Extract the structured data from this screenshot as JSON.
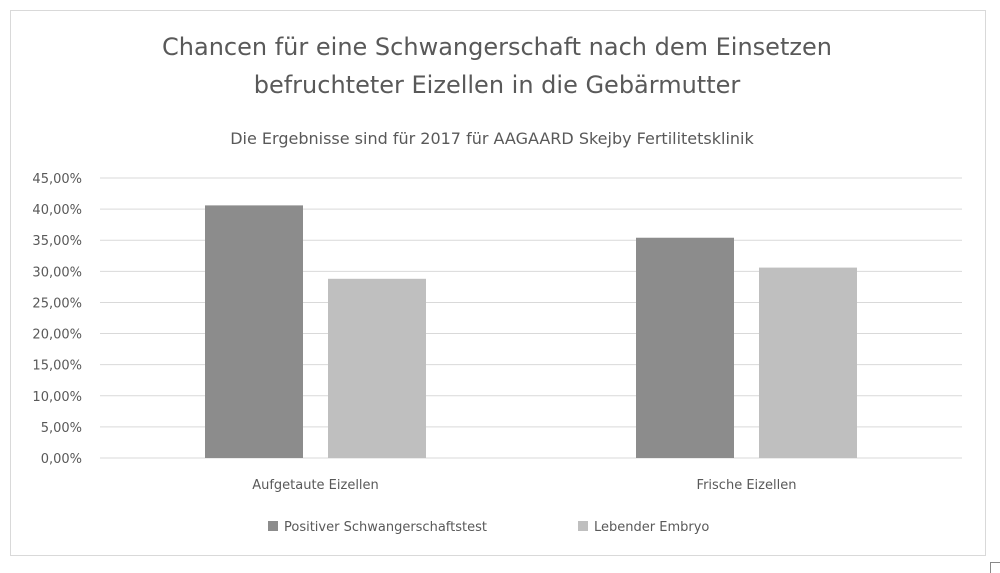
{
  "chart_data": {
    "type": "bar",
    "title_line1": "Chancen für eine Schwangerschaft nach dem Einsetzen",
    "title_line2": "befruchteter Eizellen in die Gebärmutter",
    "subtitle": "Die Ergebnisse sind für 2017 für AAGAARD Skejby Fertilitetsklinik",
    "categories": [
      "Aufgetaute Eizellen",
      "Frische Eizellen"
    ],
    "series": [
      {
        "name": "Positiver Schwangerschaftstest",
        "values": [
          40.6,
          35.4
        ],
        "color": "#8c8c8c"
      },
      {
        "name": "Lebender Embryo",
        "values": [
          28.8,
          30.6
        ],
        "color": "#bfbfbf"
      }
    ],
    "ylim": [
      0,
      45
    ],
    "yticks": [
      "0,00%",
      "5,00%",
      "10,00%",
      "15,00%",
      "20,00%",
      "25,00%",
      "30,00%",
      "35,00%",
      "40,00%",
      "45,00%"
    ],
    "xlabel": "",
    "ylabel": "",
    "grid": true,
    "legend_position": "bottom"
  }
}
